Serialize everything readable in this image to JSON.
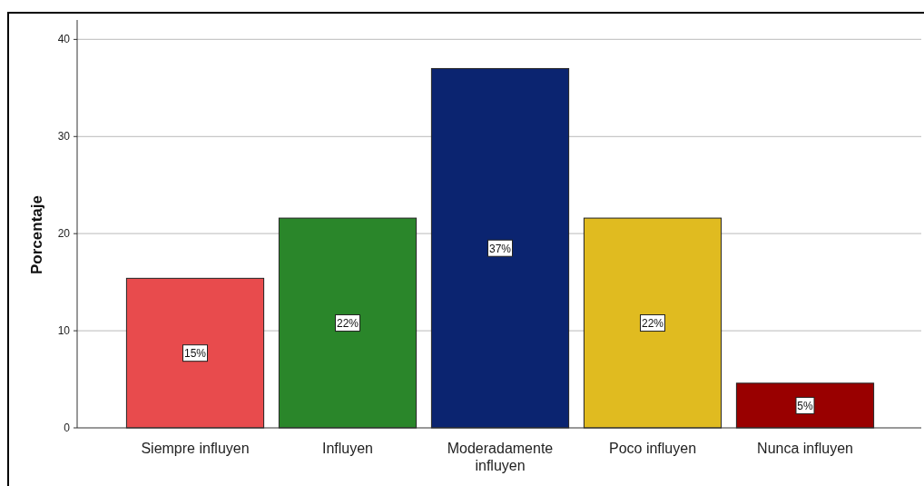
{
  "chart_data": {
    "type": "bar",
    "ylabel": "Porcentaje",
    "categories": [
      "Siempre influyen",
      "Influyen",
      "Moderadamente influyen",
      "Poco influyen",
      "Nunca influyen"
    ],
    "values": [
      15.4,
      21.6,
      37.0,
      21.6,
      4.6
    ],
    "colors": [
      "#e84b4d",
      "#2a862a",
      "#0b2470",
      "#e0bb20",
      "#990000"
    ],
    "value_labels": [
      "15%",
      "22%",
      "37%",
      "22%",
      "5%"
    ],
    "ylim": [
      0,
      42
    ],
    "yticks": [
      0,
      10,
      20,
      30,
      40
    ],
    "grid": "y"
  }
}
